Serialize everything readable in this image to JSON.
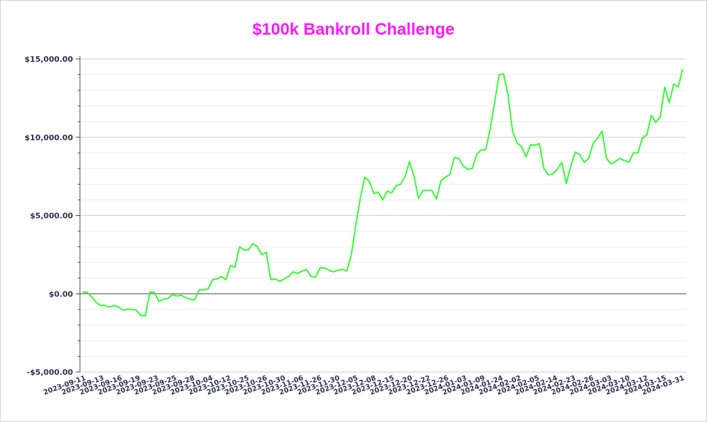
{
  "chart_data": {
    "type": "line",
    "title": "$100k Bankroll Challenge",
    "xlabel": "",
    "ylabel": "",
    "ylim": [
      -5000,
      15000
    ],
    "y_ticks": [
      15000,
      10000,
      5000,
      0,
      -5000
    ],
    "y_tick_labels": [
      "$15,000.00",
      "$10,000.00",
      "$5,000.00",
      "$0.00",
      "-$5,000.00"
    ],
    "x_tick_labels": [
      "2023-09-11",
      "2023-09-13",
      "2023-09-16",
      "2023-09-19",
      "2023-09-23",
      "2023-09-25",
      "2023-09-28",
      "2023-10-04",
      "2023-10-12",
      "2023-10-25",
      "2023-10-26",
      "2023-10-30",
      "2023-11-06",
      "2023-11-26",
      "2023-11-30",
      "2023-12-05",
      "2023-12-08",
      "2023-12-15",
      "2023-12-20",
      "2023-12-22",
      "2023-12-26",
      "2024-01-03",
      "2024-01-09",
      "2024-01-24",
      "2024-02-02",
      "2024-02-05",
      "2024-02-14",
      "2024-02-23",
      "2024-02-26",
      "2024-03-03",
      "2024-03-10",
      "2024-03-12",
      "2024-03-15",
      "2024-03-31"
    ],
    "grid": true,
    "zero_line": true,
    "colors": {
      "line": "#33ff33",
      "title": "#ff1aff",
      "grid": "#d9d9d9",
      "zero": "#666666"
    },
    "series": [
      {
        "values": [
          100,
          100,
          -200,
          -550,
          -750,
          -750,
          -850,
          -750,
          -850,
          -1050,
          -1000,
          -1000,
          -1050,
          -1400,
          -1400,
          100,
          100,
          -500,
          -350,
          -300,
          -50,
          -150,
          -100,
          -250,
          -350,
          -400,
          250,
          250,
          300,
          900,
          950,
          1100,
          900,
          1800,
          1700,
          3000,
          2800,
          2800,
          3200,
          3000,
          2500,
          2650,
          900,
          950,
          800,
          950,
          1100,
          1400,
          1300,
          1450,
          1550,
          1100,
          1050,
          1650,
          1650,
          1500,
          1400,
          1500,
          1550,
          1450,
          2500,
          4400,
          6100,
          7450,
          7200,
          6400,
          6500,
          6000,
          6550,
          6450,
          6900,
          7000,
          7500,
          8450,
          7500,
          6100,
          6600,
          6600,
          6600,
          6050,
          7200,
          7450,
          7600,
          8700,
          8650,
          8150,
          7950,
          8000,
          8900,
          9200,
          9200,
          10500,
          12200,
          14000,
          14050,
          12700,
          10400,
          9650,
          9400,
          8750,
          9500,
          9500,
          9600,
          8000,
          7600,
          7650,
          7950,
          8400,
          7050,
          8150,
          9050,
          8900,
          8400,
          8650,
          9600,
          9950,
          10400,
          8650,
          8300,
          8450,
          8650,
          8500,
          8400,
          9000,
          9000,
          9950,
          10150,
          11400,
          10950,
          11300,
          13200,
          12200,
          13400,
          13200,
          14350
        ]
      }
    ]
  }
}
